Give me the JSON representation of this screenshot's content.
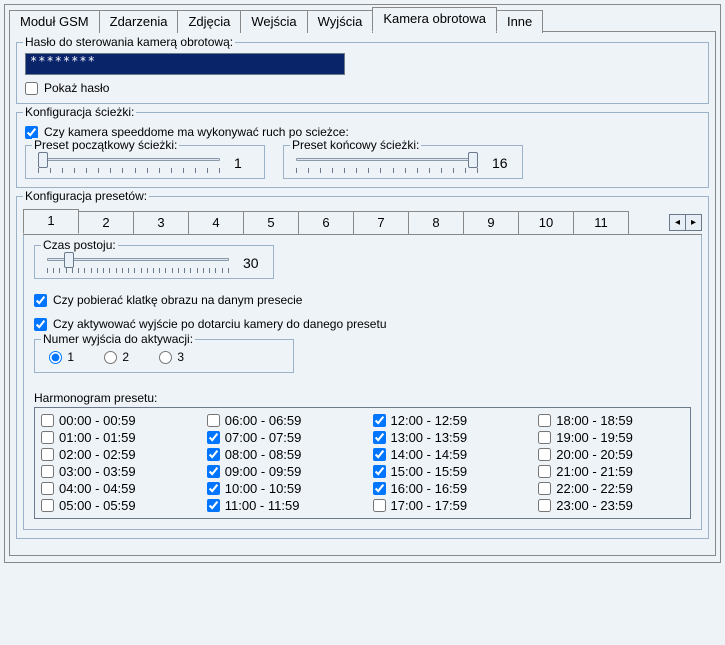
{
  "tabs": {
    "list": [
      {
        "label": "Moduł GSM"
      },
      {
        "label": "Zdarzenia"
      },
      {
        "label": "Zdjęcia"
      },
      {
        "label": "Wejścia"
      },
      {
        "label": "Wyjścia"
      },
      {
        "label": "Kamera obrotowa"
      },
      {
        "label": "Inne"
      }
    ],
    "active_index": 5
  },
  "password_group": {
    "legend": "Hasło do sterowania kamerą obrotową:",
    "mask": "********",
    "show_password_label": "Pokaż hasło",
    "show_password_checked": false
  },
  "path_config": {
    "legend": "Konfiguracja ścieżki:",
    "enable_label": "Czy kamera speeddome ma wykonywać ruch po scieżce:",
    "enable_checked": true,
    "start_preset": {
      "legend": "Preset początkowy ścieżki:",
      "value": "1",
      "thumb_pct": 0
    },
    "end_preset": {
      "legend": "Preset końcowy ścieżki:",
      "value": "16",
      "thumb_pct": 100
    }
  },
  "preset_config": {
    "legend": "Konfiguracja presetów:",
    "tabs": [
      "1",
      "2",
      "3",
      "4",
      "5",
      "6",
      "7",
      "8",
      "9",
      "10",
      "11"
    ],
    "active_index": 0,
    "dwell": {
      "legend": "Czas postoju:",
      "value": "30",
      "thumb_pct": 10
    },
    "grab_frame": {
      "label": "Czy pobierać klatkę obrazu na danym presecie",
      "checked": true
    },
    "activate_output": {
      "label": "Czy aktywować wyjście po dotarciu kamery do danego presetu",
      "checked": true
    },
    "output_number": {
      "legend": "Numer wyjścia do aktywacji:",
      "options": [
        {
          "label": "1",
          "selected": true
        },
        {
          "label": "2",
          "selected": false
        },
        {
          "label": "3",
          "selected": false
        }
      ]
    },
    "schedule": {
      "title": "Harmonogram presetu:",
      "slots": [
        {
          "label": "00:00 - 00:59",
          "checked": false
        },
        {
          "label": "01:00 - 01:59",
          "checked": false
        },
        {
          "label": "02:00 - 02:59",
          "checked": false
        },
        {
          "label": "03:00 - 03:59",
          "checked": false
        },
        {
          "label": "04:00 - 04:59",
          "checked": false
        },
        {
          "label": "05:00 - 05:59",
          "checked": false
        },
        {
          "label": "06:00 - 06:59",
          "checked": false
        },
        {
          "label": "07:00 - 07:59",
          "checked": true
        },
        {
          "label": "08:00 - 08:59",
          "checked": true
        },
        {
          "label": "09:00 - 09:59",
          "checked": true
        },
        {
          "label": "10:00 - 10:59",
          "checked": true
        },
        {
          "label": "11:00 - 11:59",
          "checked": true
        },
        {
          "label": "12:00 - 12:59",
          "checked": true
        },
        {
          "label": "13:00 - 13:59",
          "checked": true
        },
        {
          "label": "14:00 - 14:59",
          "checked": true
        },
        {
          "label": "15:00 - 15:59",
          "checked": true
        },
        {
          "label": "16:00 - 16:59",
          "checked": true
        },
        {
          "label": "17:00 - 17:59",
          "checked": false
        },
        {
          "label": "18:00 - 18:59",
          "checked": false
        },
        {
          "label": "19:00 - 19:59",
          "checked": false
        },
        {
          "label": "20:00 - 20:59",
          "checked": false
        },
        {
          "label": "21:00 - 21:59",
          "checked": false
        },
        {
          "label": "22:00 - 22:59",
          "checked": false
        },
        {
          "label": "23:00 - 23:59",
          "checked": false
        }
      ]
    }
  }
}
